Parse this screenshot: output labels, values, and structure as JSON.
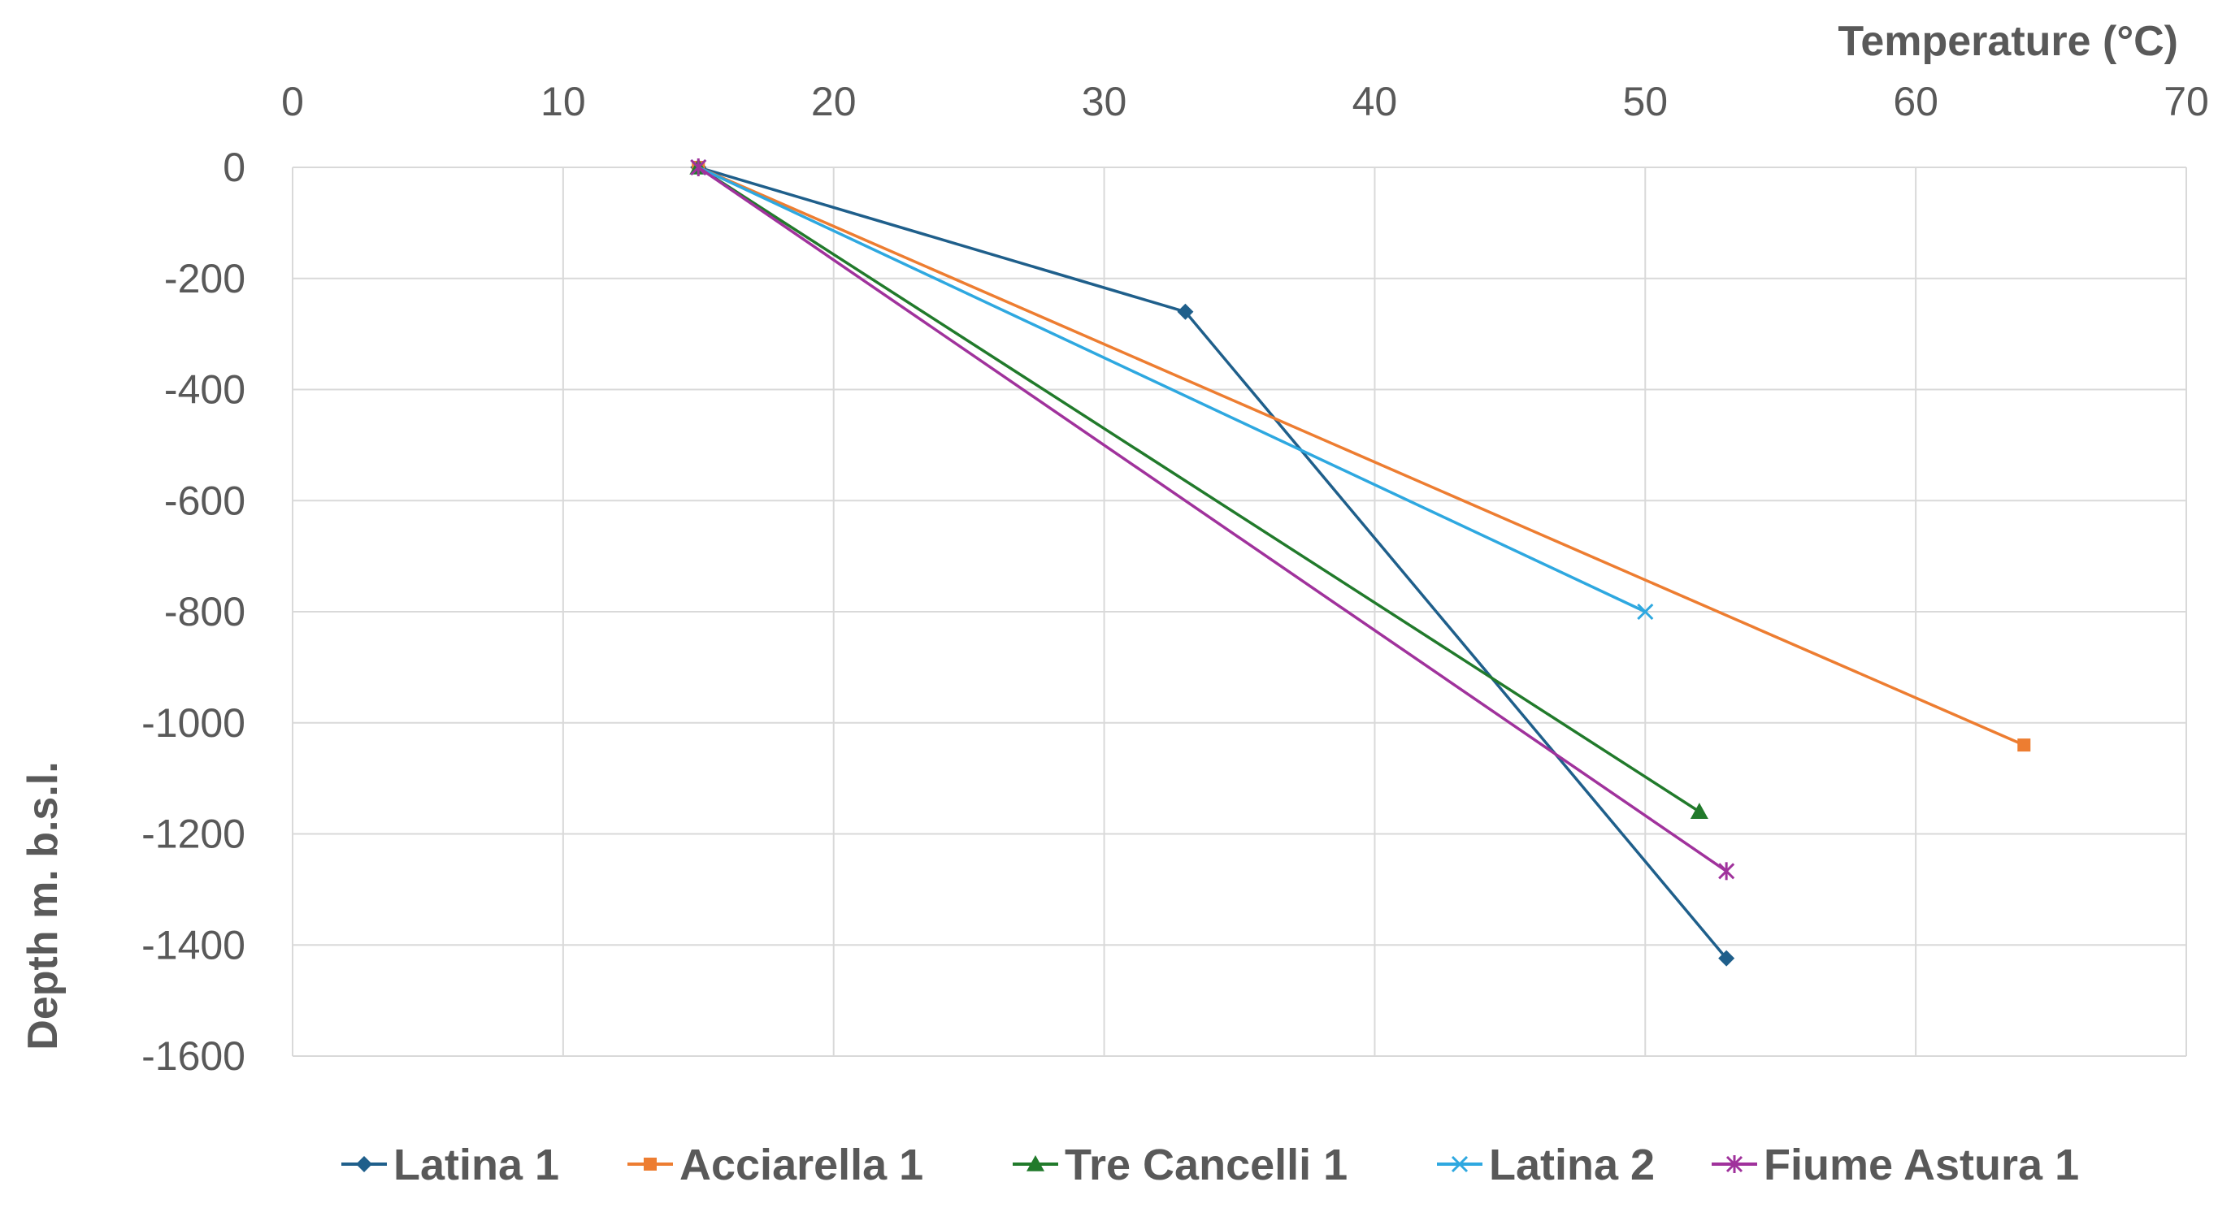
{
  "chart_data": {
    "type": "line",
    "title": "",
    "xlabel": "Temperature (°C)",
    "ylabel": "Depth m. b.s.l.",
    "xlim": [
      0,
      70
    ],
    "ylim": [
      -1600,
      0
    ],
    "x_ticks": [
      0,
      10,
      20,
      30,
      40,
      50,
      60,
      70
    ],
    "x_tick_labels": [
      "0",
      "10",
      "20",
      "30",
      "40",
      "50",
      "60",
      "70"
    ],
    "y_ticks": [
      0,
      -200,
      -400,
      -600,
      -800,
      -1000,
      -1200,
      -1400,
      -1600
    ],
    "y_tick_labels": [
      "0",
      "-200",
      "-400",
      "-600",
      "-800",
      "-1000",
      "-1200",
      "-1400",
      "-1600"
    ],
    "x_axis_position": "top",
    "grid": true,
    "legend_position": "bottom",
    "series": [
      {
        "name": "Latina 1",
        "color": "#1f5f8b",
        "marker": "diamond",
        "points": [
          [
            15,
            0
          ],
          [
            33,
            -260
          ],
          [
            53,
            -1424
          ]
        ]
      },
      {
        "name": "Acciarella 1",
        "color": "#ed7d31",
        "marker": "square",
        "points": [
          [
            15,
            0
          ],
          [
            64,
            -1040
          ]
        ]
      },
      {
        "name": "Tre Cancelli 1",
        "color": "#217a2b",
        "marker": "triangle",
        "points": [
          [
            15,
            0
          ],
          [
            52,
            -1160
          ]
        ]
      },
      {
        "name": "Latina 2",
        "color": "#2ea8e0",
        "marker": "x",
        "points": [
          [
            15,
            0
          ],
          [
            50,
            -800
          ]
        ]
      },
      {
        "name": "Fiume Astura 1",
        "color": "#a0329c",
        "marker": "star",
        "points": [
          [
            15,
            0
          ],
          [
            53,
            -1267
          ]
        ]
      }
    ]
  }
}
